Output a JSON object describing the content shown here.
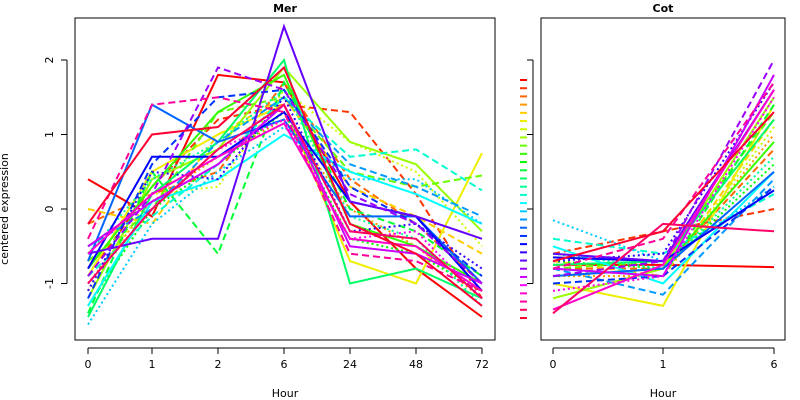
{
  "chart_data": [
    {
      "type": "line",
      "title": "Mer",
      "xlabel": "Hour",
      "ylabel": "centered expression",
      "categories": [
        "0",
        "1",
        "2",
        "6",
        "24",
        "48",
        "72"
      ],
      "ylim": [
        -1.7,
        2.6
      ],
      "yticks": [
        "-1",
        "0",
        "1",
        "2"
      ],
      "grid": false,
      "series": [
        {
          "color": "#ff0000",
          "dash": "solid",
          "values": [
            0.4,
            -0.1,
            1.8,
            1.7,
            0.1,
            -0.8,
            -1.45
          ]
        },
        {
          "color": "#ff3300",
          "dash": "dashed",
          "values": [
            -0.9,
            0.3,
            1.2,
            1.4,
            1.3,
            0.2,
            -1.2
          ]
        },
        {
          "color": "#ff6600",
          "dash": "dashed",
          "values": [
            -0.2,
            0.2,
            0.5,
            1.7,
            0.4,
            -0.2,
            -1.0
          ]
        },
        {
          "color": "#ff9900",
          "dash": "dotted",
          "values": [
            -1.0,
            0.1,
            0.7,
            1.2,
            0.0,
            -0.5,
            -1.2
          ]
        },
        {
          "color": "#ffcc00",
          "dash": "dashed",
          "values": [
            0.0,
            -0.2,
            1.0,
            1.5,
            0.3,
            -0.1,
            -0.6
          ]
        },
        {
          "color": "#eeee00",
          "dash": "solid",
          "values": [
            -0.9,
            0.5,
            1.0,
            1.4,
            -0.7,
            -1.0,
            0.75
          ]
        },
        {
          "color": "#ccff00",
          "dash": "dotted",
          "values": [
            -1.1,
            0.2,
            0.3,
            1.6,
            0.9,
            0.5,
            -0.5
          ]
        },
        {
          "color": "#99ff00",
          "dash": "solid",
          "values": [
            -1.2,
            0.4,
            0.8,
            1.9,
            0.9,
            0.6,
            -0.3
          ]
        },
        {
          "color": "#66ff00",
          "dash": "dashed",
          "values": [
            -0.7,
            0.0,
            1.3,
            1.5,
            0.5,
            0.3,
            0.45
          ]
        },
        {
          "color": "#33ff00",
          "dash": "solid",
          "values": [
            -0.8,
            0.3,
            1.3,
            1.8,
            -0.2,
            -0.5,
            -1.0
          ]
        },
        {
          "color": "#00ff00",
          "dash": "dotted",
          "values": [
            -1.3,
            0.0,
            0.6,
            1.3,
            -0.4,
            -0.6,
            -1.1
          ]
        },
        {
          "color": "#00ff33",
          "dash": "dashed",
          "values": [
            -1.4,
            0.5,
            -0.6,
            1.7,
            0.0,
            -0.3,
            -0.9
          ]
        },
        {
          "color": "#00ff66",
          "dash": "solid",
          "values": [
            -1.45,
            0.2,
            0.9,
            2.0,
            -1.0,
            -0.8,
            -1.2
          ]
        },
        {
          "color": "#00ff99",
          "dash": "dotted",
          "values": [
            -0.6,
            0.4,
            0.9,
            1.6,
            -0.1,
            -0.4,
            -1.3
          ]
        },
        {
          "color": "#00ffcc",
          "dash": "dashed",
          "values": [
            -0.9,
            -0.1,
            0.6,
            1.5,
            0.7,
            0.8,
            0.25
          ]
        },
        {
          "color": "#00ffff",
          "dash": "solid",
          "values": [
            -1.3,
            0.1,
            0.4,
            1.0,
            0.5,
            0.2,
            -0.2
          ]
        },
        {
          "color": "#00ccff",
          "dash": "dotted",
          "values": [
            -1.55,
            -0.2,
            0.5,
            1.1,
            0.4,
            0.4,
            -0.2
          ]
        },
        {
          "color": "#0099ff",
          "dash": "dashed",
          "values": [
            -0.5,
            0.0,
            0.9,
            1.5,
            0.6,
            0.3,
            -0.1
          ]
        },
        {
          "color": "#0066ff",
          "dash": "solid",
          "values": [
            -0.7,
            1.4,
            0.9,
            1.2,
            -0.1,
            -0.1,
            -1.0
          ]
        },
        {
          "color": "#0033ff",
          "dash": "dashed",
          "values": [
            -1.2,
            0.6,
            1.5,
            1.6,
            0.3,
            -0.2,
            -0.9
          ]
        },
        {
          "color": "#0000ff",
          "dash": "solid",
          "values": [
            -0.8,
            0.7,
            0.7,
            1.3,
            0.1,
            -0.1,
            -1.1
          ]
        },
        {
          "color": "#3300ff",
          "dash": "dotted",
          "values": [
            -1.1,
            0.5,
            0.4,
            1.5,
            -0.3,
            -0.2,
            -0.8
          ]
        },
        {
          "color": "#6600ff",
          "dash": "solid",
          "values": [
            -0.6,
            -0.4,
            -0.4,
            2.45,
            0.1,
            -0.1,
            -0.4
          ]
        },
        {
          "color": "#9900ff",
          "dash": "dashed",
          "values": [
            -0.9,
            0.2,
            1.9,
            1.6,
            0.2,
            -0.2,
            -1.0
          ]
        },
        {
          "color": "#cc00ff",
          "dash": "solid",
          "values": [
            -0.5,
            0.1,
            0.6,
            1.4,
            -0.5,
            -0.6,
            -1.0
          ]
        },
        {
          "color": "#ff00ff",
          "dash": "dotted",
          "values": [
            -1.0,
            0.0,
            0.8,
            1.2,
            -0.4,
            -0.3,
            -1.2
          ]
        },
        {
          "color": "#ff00cc",
          "dash": "solid",
          "values": [
            -0.6,
            0.2,
            0.7,
            1.15,
            -0.4,
            -0.5,
            -1.1
          ]
        },
        {
          "color": "#ff0099",
          "dash": "dashed",
          "values": [
            -0.4,
            1.4,
            1.5,
            1.3,
            -0.6,
            -0.7,
            -1.1
          ]
        },
        {
          "color": "#ff0066",
          "dash": "solid",
          "values": [
            -1.0,
            0.0,
            0.8,
            1.4,
            -0.3,
            -0.4,
            -1.2
          ]
        },
        {
          "color": "#ff0033",
          "dash": "solid",
          "values": [
            -0.2,
            1.0,
            1.1,
            1.9,
            -0.2,
            -0.6,
            -1.3
          ]
        }
      ]
    },
    {
      "type": "line",
      "title": "Cot",
      "xlabel": "Hour",
      "categories": [
        "0",
        "1",
        "6"
      ],
      "ylim": [
        -1.7,
        2.6
      ],
      "grid": false,
      "legend": "left",
      "series": [
        {
          "color": "#ff0000",
          "dash": "solid",
          "values": [
            -0.75,
            -0.75,
            -0.78
          ]
        },
        {
          "color": "#ff3300",
          "dash": "dashed",
          "values": [
            -0.6,
            -0.3,
            0.0
          ]
        },
        {
          "color": "#ff6600",
          "dash": "dashed",
          "values": [
            -0.8,
            -0.8,
            0.8
          ]
        },
        {
          "color": "#ff9900",
          "dash": "dotted",
          "values": [
            -0.9,
            -0.9,
            1.0
          ]
        },
        {
          "color": "#ffcc00",
          "dash": "dashed",
          "values": [
            -0.7,
            -0.9,
            1.2
          ]
        },
        {
          "color": "#eeee00",
          "dash": "solid",
          "values": [
            -1.0,
            -1.3,
            1.4
          ]
        },
        {
          "color": "#ccff00",
          "dash": "dotted",
          "values": [
            -1.1,
            -0.9,
            1.1
          ]
        },
        {
          "color": "#99ff00",
          "dash": "solid",
          "values": [
            -1.2,
            -0.8,
            1.5
          ]
        },
        {
          "color": "#66ff00",
          "dash": "dashed",
          "values": [
            -0.8,
            -0.7,
            1.3
          ]
        },
        {
          "color": "#33ff00",
          "dash": "solid",
          "values": [
            -0.9,
            -0.8,
            0.9
          ]
        },
        {
          "color": "#00ff00",
          "dash": "dotted",
          "values": [
            -0.7,
            -0.8,
            0.6
          ]
        },
        {
          "color": "#00ff33",
          "dash": "dashed",
          "values": [
            -0.8,
            -0.9,
            1.4
          ]
        },
        {
          "color": "#00ff66",
          "dash": "solid",
          "values": [
            -0.75,
            -0.7,
            1.2
          ]
        },
        {
          "color": "#00ff99",
          "dash": "dotted",
          "values": [
            -0.6,
            -0.8,
            0.7
          ]
        },
        {
          "color": "#00ffcc",
          "dash": "dashed",
          "values": [
            -0.4,
            -0.6,
            0.2
          ]
        },
        {
          "color": "#00ffff",
          "dash": "solid",
          "values": [
            -0.5,
            -1.0,
            0.5
          ]
        },
        {
          "color": "#00ccff",
          "dash": "dotted",
          "values": [
            -0.15,
            -0.7,
            0.3
          ]
        },
        {
          "color": "#0099ff",
          "dash": "dashed",
          "values": [
            -0.8,
            -1.15,
            0.4
          ]
        },
        {
          "color": "#0066ff",
          "dash": "solid",
          "values": [
            -0.9,
            -0.8,
            0.5
          ]
        },
        {
          "color": "#0033ff",
          "dash": "dashed",
          "values": [
            -1.0,
            -0.9,
            0.3
          ]
        },
        {
          "color": "#0000ff",
          "dash": "solid",
          "values": [
            -0.65,
            -0.7,
            0.25
          ]
        },
        {
          "color": "#3300ff",
          "dash": "dotted",
          "values": [
            -0.7,
            -0.6,
            1.7
          ]
        },
        {
          "color": "#6600ff",
          "dash": "solid",
          "values": [
            -0.6,
            -0.7,
            1.6
          ]
        },
        {
          "color": "#9900ff",
          "dash": "dashed",
          "values": [
            -0.9,
            -0.7,
            2.0
          ]
        },
        {
          "color": "#cc00ff",
          "dash": "solid",
          "values": [
            -0.8,
            -0.9,
            1.8
          ]
        },
        {
          "color": "#ff00ff",
          "dash": "dotted",
          "values": [
            -1.1,
            -0.9,
            1.5
          ]
        },
        {
          "color": "#ff00cc",
          "dash": "solid",
          "values": [
            -1.35,
            -0.75,
            1.6
          ]
        },
        {
          "color": "#ff0099",
          "dash": "dashed",
          "values": [
            -0.8,
            -0.4,
            1.7
          ]
        },
        {
          "color": "#ff0066",
          "dash": "solid",
          "values": [
            -1.4,
            -0.2,
            -0.3
          ]
        },
        {
          "color": "#ff0033",
          "dash": "solid",
          "values": [
            -0.7,
            -0.3,
            1.3
          ]
        }
      ]
    }
  ]
}
